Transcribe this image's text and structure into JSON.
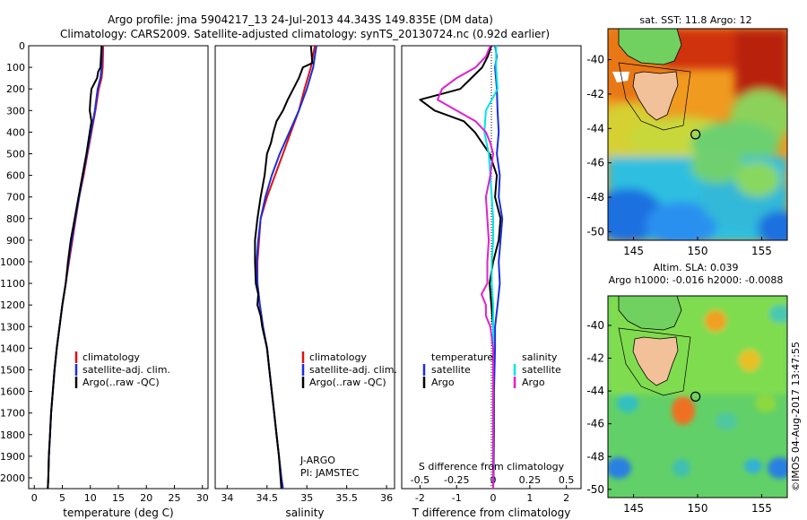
{
  "header": {
    "line1": "Argo profile: jma 5904217_13 24-Jul-2013 44.343S 149.835E (DM data)",
    "line2": "Climatology: CARS2009. Satellite-adjusted climatology: synTS_20130724.nc (0.92d earlier)"
  },
  "depth_axis": {
    "ticks": [
      0,
      100,
      200,
      300,
      400,
      500,
      600,
      700,
      800,
      900,
      1000,
      1100,
      1200,
      1300,
      1400,
      1500,
      1600,
      1700,
      1800,
      1900,
      2000
    ],
    "ylim": [
      2050,
      0
    ]
  },
  "colors": {
    "climatology": "#e01010",
    "satellite": "#1a2ee0",
    "argo": "#000000",
    "cyan": "#00e5e5",
    "magenta": "#e020d0"
  },
  "chart_data": [
    {
      "id": "temperature",
      "type": "line",
      "xlabel": "temperature (deg C)",
      "xlim": [
        -1,
        31
      ],
      "xticks": [
        0,
        5,
        10,
        15,
        20,
        25,
        30
      ],
      "legend": [
        "climatology",
        "satellite-adj. clim.",
        "Argo(..raw -QC)"
      ],
      "series": [
        {
          "name": "climatology",
          "depth": [
            0,
            100,
            150,
            200,
            300,
            400,
            500,
            600,
            700,
            800,
            900,
            1000,
            1100,
            1200,
            1300,
            1400,
            1500,
            1600,
            1700,
            1800,
            1900,
            2000,
            2050
          ],
          "values": [
            12.3,
            12.2,
            12.0,
            11.5,
            10.9,
            10.2,
            9.5,
            8.8,
            8.0,
            7.4,
            6.8,
            6.2,
            5.6,
            5.0,
            4.5,
            4.0,
            3.6,
            3.3,
            3.0,
            2.8,
            2.6,
            2.5,
            2.4
          ]
        },
        {
          "name": "satellite-adj. clim.",
          "depth": [
            0,
            100,
            150,
            200,
            300,
            400,
            500,
            600,
            700,
            800,
            900,
            1000,
            1100,
            1200,
            1300,
            1400,
            1500,
            1600,
            1700,
            1800,
            1900,
            2000,
            2050
          ],
          "values": [
            12.1,
            12.0,
            11.8,
            11.3,
            10.8,
            10.1,
            9.4,
            8.7,
            8.0,
            7.3,
            6.7,
            6.1,
            5.6,
            5.0,
            4.5,
            4.0,
            3.6,
            3.3,
            3.0,
            2.8,
            2.6,
            2.5,
            2.4
          ]
        },
        {
          "name": "Argo",
          "depth": [
            0,
            100,
            120,
            150,
            180,
            200,
            250,
            300,
            350,
            400,
            500,
            600,
            700,
            800,
            900,
            1000,
            1100,
            1200,
            1300,
            1400,
            1500,
            1600,
            1700,
            1800,
            1900,
            2000,
            2050
          ],
          "values": [
            12.0,
            11.8,
            11.4,
            11.2,
            10.6,
            10.2,
            10.0,
            9.9,
            10.2,
            9.9,
            9.3,
            8.6,
            7.9,
            7.2,
            6.5,
            6.0,
            5.6,
            5.0,
            4.5,
            4.0,
            3.6,
            3.3,
            3.0,
            2.8,
            2.6,
            2.5,
            2.4
          ]
        }
      ]
    },
    {
      "id": "salinity",
      "type": "line",
      "xlabel": "salinity",
      "xlim": [
        33.85,
        36.1
      ],
      "xticks": [
        34,
        34.5,
        35,
        35.5,
        36
      ],
      "legend": [
        "climatology",
        "satellite-adj. clim.",
        "Argo(..raw -QC)"
      ],
      "annotation_lines": [
        "J-ARGO",
        "PI: JAMSTEC"
      ],
      "series": [
        {
          "name": "climatology",
          "depth": [
            0,
            100,
            200,
            300,
            400,
            500,
            600,
            700,
            800,
            900,
            1000,
            1100,
            1200,
            1300,
            1400,
            1500,
            1600,
            1700,
            1800,
            1900,
            2000,
            2050
          ],
          "values": [
            35.1,
            35.05,
            34.97,
            34.9,
            34.8,
            34.7,
            34.6,
            34.5,
            34.42,
            34.4,
            34.38,
            34.38,
            34.41,
            34.45,
            34.5,
            34.53,
            34.56,
            34.59,
            34.62,
            34.65,
            34.68,
            34.7
          ]
        },
        {
          "name": "satellite-adj. clim.",
          "depth": [
            0,
            100,
            200,
            300,
            400,
            500,
            600,
            700,
            800,
            900,
            1000,
            1100,
            1200,
            1300,
            1400,
            1500,
            1600,
            1700,
            1800,
            1900,
            2000,
            2050
          ],
          "values": [
            35.12,
            35.08,
            35.0,
            34.9,
            34.78,
            34.66,
            34.56,
            34.48,
            34.42,
            34.39,
            34.37,
            34.38,
            34.41,
            34.45,
            34.5,
            34.53,
            34.56,
            34.59,
            34.62,
            34.65,
            34.68,
            34.7
          ]
        },
        {
          "name": "Argo",
          "depth": [
            0,
            80,
            100,
            150,
            200,
            250,
            300,
            350,
            400,
            450,
            500,
            600,
            700,
            800,
            900,
            1000,
            1100,
            1150,
            1200,
            1250,
            1300,
            1400,
            1500,
            1600,
            1700,
            1800,
            1900,
            2000,
            2050
          ],
          "values": [
            35.05,
            35.07,
            34.95,
            34.9,
            34.83,
            34.76,
            34.7,
            34.62,
            34.58,
            34.55,
            34.5,
            34.47,
            34.42,
            34.38,
            34.35,
            34.35,
            34.36,
            34.39,
            34.38,
            34.42,
            34.44,
            34.5,
            34.53,
            34.56,
            34.59,
            34.62,
            34.65,
            34.67,
            34.68
          ]
        }
      ]
    },
    {
      "id": "differences",
      "type": "line",
      "xlabel": "T difference from climatology",
      "xlabel_top": "S difference from climatology",
      "xlim": [
        -2.5,
        2.4
      ],
      "xticks": [
        -2,
        -1,
        0,
        1,
        2
      ],
      "xticks_top": [
        -0.5,
        -0.25,
        0,
        0.25,
        0.5
      ],
      "xticks_top_labels": [
        "-0.5",
        "-0.25",
        "0",
        "0.25",
        "0.5"
      ],
      "legend_left_title": "temperature",
      "legend_right_title": "salinity",
      "legend": [
        "satellite",
        "Argo",
        "satellite",
        "Argo"
      ],
      "series": [
        {
          "name": "T satellite",
          "depth": [
            0,
            50,
            100,
            200,
            300,
            400,
            500,
            600,
            700,
            800,
            900,
            1000,
            1100,
            1200,
            1300,
            1400,
            1600,
            1800,
            2000,
            2050
          ],
          "values": [
            0.05,
            0.1,
            0.05,
            0.1,
            0.12,
            0.15,
            0.1,
            0.18,
            0.15,
            0.25,
            0.2,
            0.15,
            0.18,
            0.12,
            0.05,
            0.05,
            0.02,
            0.02,
            0.01,
            0.0
          ]
        },
        {
          "name": "T Argo",
          "depth": [
            0,
            50,
            100,
            150,
            200,
            250,
            300,
            350,
            400,
            450,
            500,
            600,
            700,
            800,
            900,
            1000,
            1100,
            1200,
            1300,
            1400,
            1600,
            1800,
            2000,
            2050
          ],
          "values": [
            -0.05,
            -0.15,
            -0.3,
            -0.6,
            -0.9,
            -2.0,
            -1.6,
            -0.8,
            -0.5,
            -0.3,
            -0.1,
            0.1,
            0.05,
            0.2,
            0.15,
            0.0,
            -0.1,
            -0.05,
            0.0,
            0.0,
            0.0,
            0.0,
            0.0,
            0.0
          ]
        },
        {
          "name": "S satellite",
          "depth": [
            0,
            100,
            200,
            300,
            400,
            500,
            600,
            700,
            800,
            900,
            1000,
            1100,
            1200,
            1300,
            1400,
            1600,
            1800,
            2000,
            2050
          ],
          "values": [
            0.02,
            0.02,
            0.03,
            -0.05,
            -0.06,
            -0.03,
            -0.02,
            -0.01,
            0.0,
            0.0,
            -0.01,
            -0.01,
            0.0,
            0.0,
            0.0,
            0.0,
            0.0,
            0.0,
            0.0
          ]
        },
        {
          "name": "S Argo",
          "depth": [
            0,
            50,
            100,
            150,
            200,
            250,
            300,
            350,
            400,
            450,
            500,
            600,
            700,
            800,
            900,
            1000,
            1100,
            1150,
            1200,
            1250,
            1300,
            1400,
            1600,
            1800,
            2000,
            2050
          ],
          "values": [
            -0.02,
            -0.05,
            -0.12,
            -0.25,
            -0.35,
            -0.38,
            -0.25,
            -0.12,
            -0.05,
            -0.02,
            0.0,
            -0.02,
            -0.05,
            -0.04,
            -0.03,
            -0.04,
            -0.04,
            -0.08,
            -0.05,
            -0.05,
            -0.02,
            0.0,
            0.0,
            0.0,
            0.0,
            0.0
          ]
        }
      ]
    },
    {
      "id": "sst_map",
      "type": "heatmap",
      "title": "sat. SST: 11.8  Argo: 12",
      "xticks": [
        145,
        150,
        155
      ],
      "yticks": [
        -40,
        -42,
        -44,
        -46,
        -48,
        -50
      ],
      "xlim": [
        143,
        157
      ],
      "ylim": [
        -50.5,
        -38.2
      ],
      "argo_position": [
        149.835,
        -44.343
      ]
    },
    {
      "id": "sla_map",
      "type": "heatmap",
      "title_line1": "Altim. SLA: 0.039",
      "title_line2": "Argo h1000: -0.016 h2000: -0.0088",
      "xticks": [
        145,
        150,
        155
      ],
      "yticks": [
        -40,
        -42,
        -44,
        -46,
        -48,
        -50
      ],
      "xlim": [
        143,
        157
      ],
      "ylim": [
        -50.5,
        -38.2
      ],
      "argo_position": [
        149.835,
        -44.343
      ]
    }
  ],
  "footer": {
    "credit": "©IMOS 04-Aug-2017 13:47:55"
  }
}
